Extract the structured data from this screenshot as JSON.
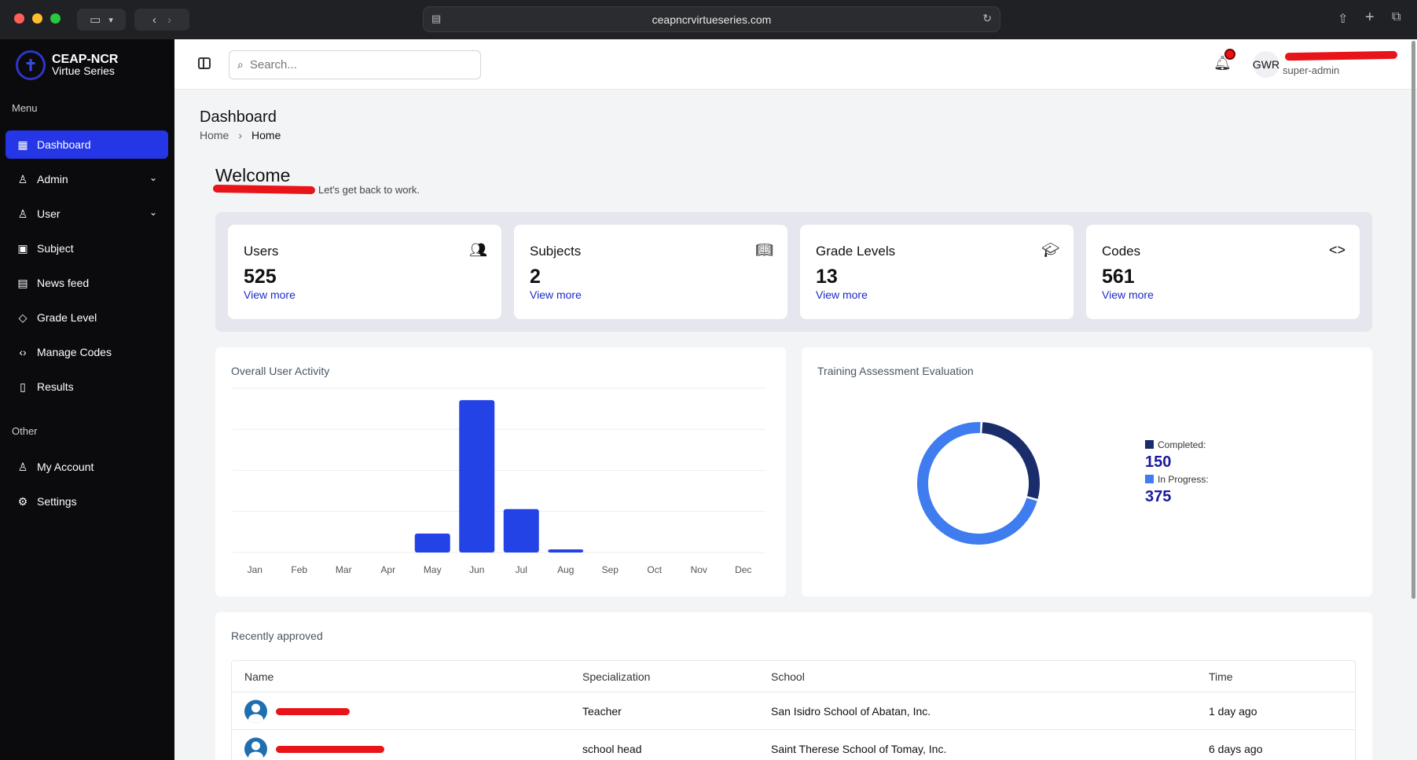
{
  "browser": {
    "url": "ceapncrvirtueseries.com"
  },
  "brand": {
    "title": "CEAP-NCR",
    "subtitle": "Virtue Series"
  },
  "sidebar": {
    "menu_label": "Menu",
    "items": [
      {
        "label": "Dashboard",
        "icon": "dashboard-icon"
      },
      {
        "label": "Admin",
        "icon": "user-icon"
      },
      {
        "label": "User",
        "icon": "users-icon"
      },
      {
        "label": "Subject",
        "icon": "book-icon"
      },
      {
        "label": "News feed",
        "icon": "newspaper-icon"
      },
      {
        "label": "Grade Level",
        "icon": "graduation-cap-icon"
      },
      {
        "label": "Manage Codes",
        "icon": "code-icon"
      },
      {
        "label": "Results",
        "icon": "file-icon"
      }
    ],
    "other_label": "Other",
    "other_items": [
      {
        "label": "My Account",
        "icon": "user-icon"
      },
      {
        "label": "Settings",
        "icon": "gear-icon"
      }
    ]
  },
  "header": {
    "search_placeholder": "Search...",
    "avatar_initials": "GWR",
    "user_role": "super-admin"
  },
  "page": {
    "title": "Dashboard",
    "breadcrumb": [
      "Home",
      "Home"
    ],
    "welcome": "Welcome",
    "welcome_sub": "Let's get back to work."
  },
  "stats": [
    {
      "label": "Users",
      "value": "525",
      "link": "View more",
      "icon": "users-icon"
    },
    {
      "label": "Subjects",
      "value": "2",
      "link": "View more",
      "icon": "book-open-icon"
    },
    {
      "label": "Grade Levels",
      "value": "13",
      "link": "View more",
      "icon": "graduation-cap-icon"
    },
    {
      "label": "Codes",
      "value": "561",
      "link": "View more",
      "icon": "code-icon"
    }
  ],
  "activity_panel": {
    "title": "Overall User Activity"
  },
  "evaluation_panel": {
    "title": "Training Assessment Evaluation"
  },
  "chart_data": [
    {
      "type": "bar",
      "categories": [
        "Jan",
        "Feb",
        "Mar",
        "Apr",
        "May",
        "Jun",
        "Jul",
        "Aug",
        "Sep",
        "Oct",
        "Nov",
        "Dec"
      ],
      "values": [
        0,
        0,
        0,
        0,
        24,
        193,
        55,
        4,
        0,
        0,
        0,
        0
      ],
      "ylim": [
        0,
        208
      ],
      "grid": true,
      "color": "#2443e6"
    },
    {
      "type": "pie",
      "categories": [
        "Completed:",
        "In Progress:"
      ],
      "values": [
        150,
        375
      ],
      "colors": [
        "#1b2c6b",
        "#3f7cf0"
      ],
      "labels": [
        "150",
        "375"
      ],
      "legend": "right"
    }
  ],
  "recent": {
    "title": "Recently approved",
    "columns": [
      "Name",
      "Specialization",
      "School",
      "Time"
    ],
    "rows": [
      {
        "specialization": "Teacher",
        "school": "San Isidro School of Abatan, Inc.",
        "time": "1 day ago"
      },
      {
        "specialization": "school head",
        "school": "Saint Therese School of Tomay, Inc.",
        "time": "6 days ago"
      }
    ]
  }
}
